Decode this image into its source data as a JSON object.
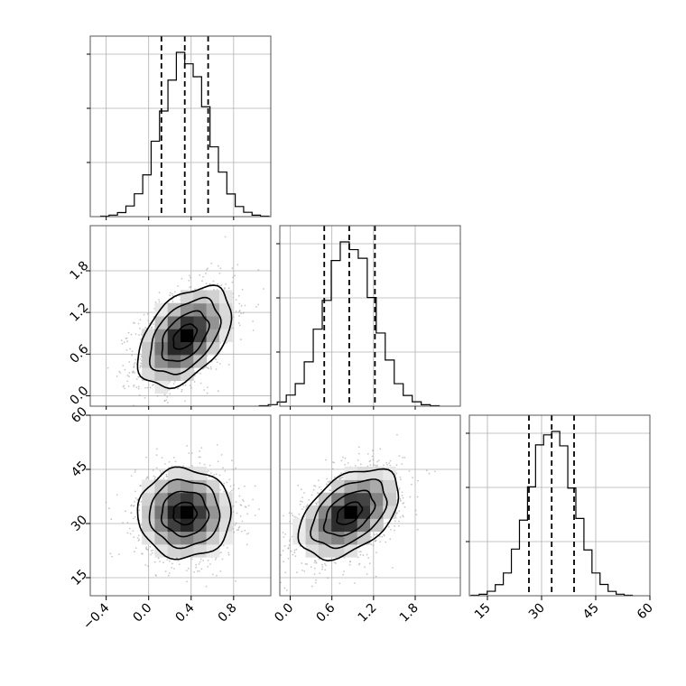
{
  "chart_data": {
    "type": "corner",
    "parameters": [
      {
        "id": "p0",
        "range": [
          -0.55,
          1.15
        ],
        "ticks": [
          -0.4,
          0.0,
          0.4,
          0.8
        ],
        "tick_labels": [
          "−0.4",
          "0.0",
          "0.4",
          "0.8"
        ],
        "mean": 0.34,
        "std": 0.22,
        "quantiles": [
          0.12,
          0.34,
          0.56
        ]
      },
      {
        "id": "p1",
        "range": [
          -0.15,
          2.45
        ],
        "ticks": [
          0.0,
          0.6,
          1.2,
          1.8
        ],
        "tick_labels": [
          "0.0",
          "0.6",
          "1.2",
          "1.8"
        ],
        "mean": 0.85,
        "std": 0.36,
        "quantiles": [
          0.49,
          0.85,
          1.22
        ]
      },
      {
        "id": "p2",
        "range": [
          10,
          60
        ],
        "ticks": [
          15,
          30,
          45,
          60
        ],
        "tick_labels": [
          "15",
          "30",
          "45",
          "60"
        ],
        "mean": 32.8,
        "std": 6.2,
        "quantiles": [
          26.5,
          32.8,
          39.0
        ]
      }
    ],
    "correlations": {
      "0-1": 0.45,
      "0-2": 0.0,
      "1-2": 0.45
    },
    "histogram_bins": 20,
    "grid": true
  }
}
